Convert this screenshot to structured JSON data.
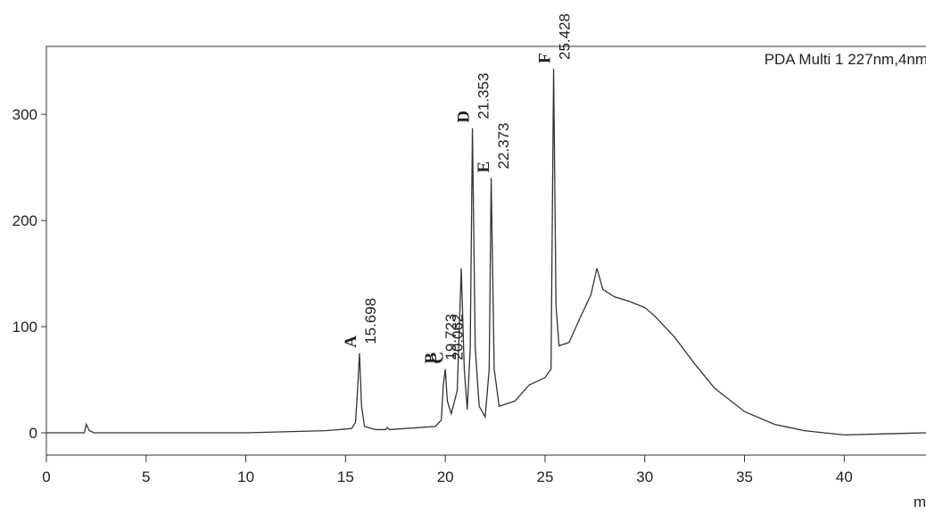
{
  "chart_data": {
    "type": "line",
    "title": "PDA Multi 1 227nm,4nm",
    "x_label": "min",
    "x": [
      0,
      1.9,
      2.0,
      2.15,
      2.4,
      10,
      14,
      15.3,
      15.5,
      15.6,
      15.698,
      15.8,
      15.95,
      16.5,
      17,
      17.1,
      17.2,
      19.5,
      19.8,
      19.9,
      20.0,
      20.1,
      20.3,
      20.6,
      20.8,
      20.95,
      21.1,
      21.25,
      21.36,
      21.5,
      21.7,
      22.0,
      22.2,
      22.3,
      22.45,
      22.7,
      23.5,
      24.2,
      25.0,
      25.3,
      25.43,
      25.55,
      25.7,
      26.2,
      26.8,
      27.3,
      27.6,
      27.9,
      28.5,
      29.2,
      30.0,
      30.5,
      31.5,
      32.5,
      33.5,
      35,
      36.5,
      38,
      40,
      42,
      44.1
    ],
    "series": [
      {
        "color": "#333333",
        "values": [
          0,
          0,
          8,
          2,
          0,
          0,
          2,
          4,
          10,
          40,
          75,
          25,
          6,
          3,
          3,
          5,
          3,
          6,
          12,
          45,
          60,
          30,
          18,
          40,
          155,
          60,
          22,
          80,
          287,
          80,
          25,
          15,
          60,
          240,
          60,
          25,
          30,
          45,
          52,
          60,
          343,
          120,
          82,
          85,
          110,
          130,
          155,
          135,
          128,
          124,
          118,
          110,
          90,
          65,
          42,
          20,
          8,
          2,
          -2,
          -1,
          0
        ]
      }
    ],
    "annotations": [
      {
        "label": "A",
        "time": 15.698
      },
      {
        "label": "B",
        "time": 19.723
      },
      {
        "label": "C",
        "time": 20.062
      },
      {
        "label": "D",
        "time": 21.353
      },
      {
        "label": "E",
        "time": 22.373
      },
      {
        "label": "F",
        "time": 25.428
      }
    ],
    "xlim": [
      0,
      44.1
    ],
    "ylim": [
      -21,
      364
    ],
    "xticks": [
      0,
      5,
      10,
      15,
      20,
      25,
      30,
      35,
      40
    ],
    "yticks": [
      0,
      100,
      200,
      300
    ]
  }
}
